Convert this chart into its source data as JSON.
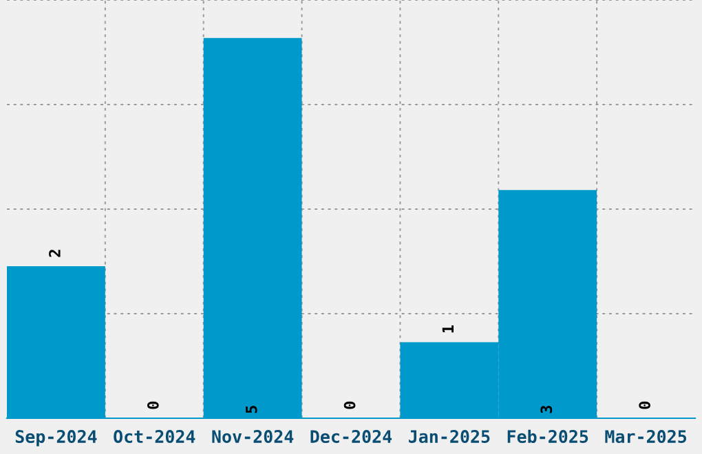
{
  "chart_data": {
    "type": "bar",
    "categories": [
      "Sep-2024",
      "Oct-2024",
      "Nov-2024",
      "Dec-2024",
      "Jan-2025",
      "Feb-2025",
      "Mar-2025"
    ],
    "values": [
      2,
      0,
      5,
      0,
      1,
      3,
      0
    ],
    "color": "#0099cc",
    "data_labels": true,
    "ylim": [
      0,
      5.5
    ],
    "yticks": [
      {
        "value": 0,
        "label": null
      },
      {
        "value": 1.375,
        "label": null
      },
      {
        "value": 2.75,
        "label": null
      },
      {
        "value": 4.125,
        "label": null
      },
      {
        "value": 5.5,
        "label": null
      }
    ],
    "tick_labels": "x",
    "grid": true
  }
}
